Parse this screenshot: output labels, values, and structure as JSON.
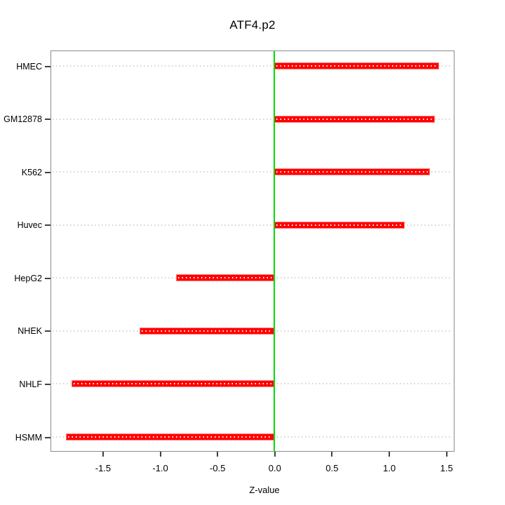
{
  "chart_data": {
    "type": "bar",
    "orientation": "horizontal",
    "title": "ATF4.p2",
    "xlabel": "Z-value",
    "ylabel": "",
    "categories": [
      "HMEC",
      "GM12878",
      "K562",
      "Huvec",
      "HepG2",
      "NHEK",
      "NHLF",
      "HSMM"
    ],
    "values": [
      1.44,
      1.4,
      1.36,
      1.14,
      -0.86,
      -1.18,
      -1.77,
      -1.82
    ],
    "baseline": 0,
    "xlim": [
      -1.95,
      1.56
    ],
    "xticks": [
      -1.5,
      -1.0,
      -0.5,
      0.0,
      0.5,
      1.0,
      1.5
    ],
    "xtick_labels": [
      "-1.5",
      "-1.0",
      "-0.5",
      "0.0",
      "0.5",
      "1.0",
      "1.5"
    ],
    "grid": "horizontal-dotted",
    "legend": "none",
    "colors": {
      "bar": "#ff0000",
      "bar_edge": "#ff7a7a",
      "bar_dots": "#ffffff",
      "zero_line": "#00dd00",
      "gridline": "#d4d4d4",
      "frame": "#8a8a8a",
      "tick": "#404040",
      "text": "#000000",
      "background": "#ffffff"
    }
  }
}
